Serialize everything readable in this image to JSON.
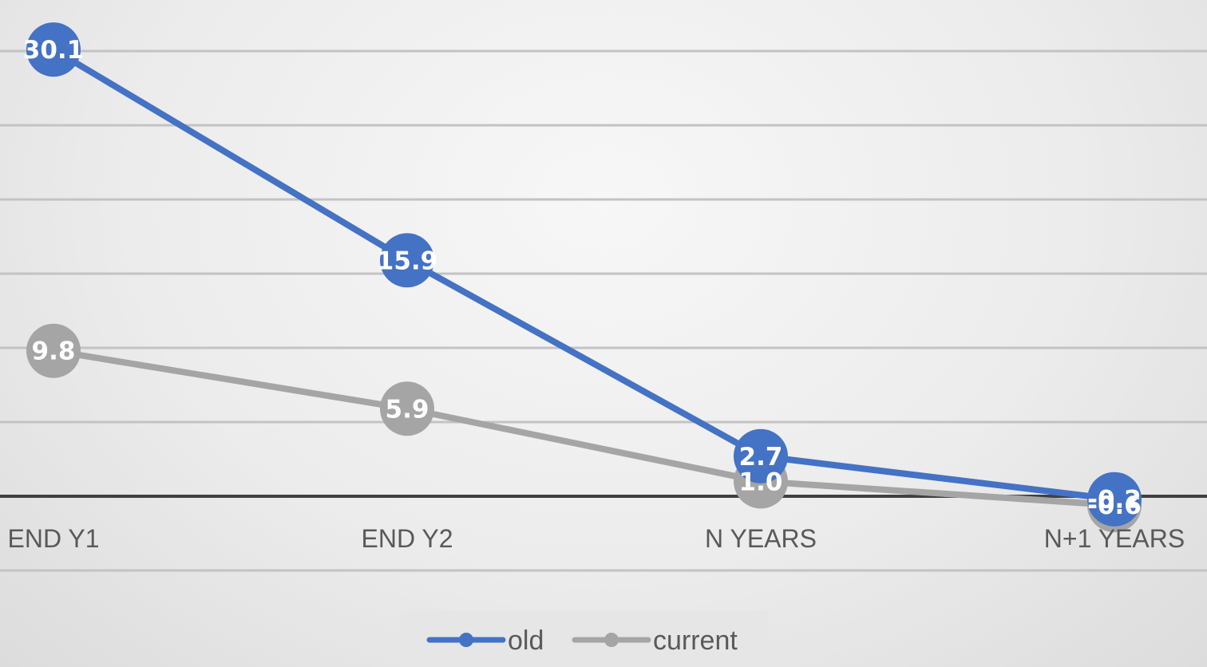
{
  "chart_data": {
    "type": "line",
    "categories": [
      "END Y1",
      "END Y2",
      "N YEARS",
      "N+1 YEARS"
    ],
    "series": [
      {
        "name": "old",
        "color": "#4472C4",
        "values": [
          30.1,
          15.9,
          2.7,
          -0.2
        ],
        "labels": [
          "30.1",
          "15.9",
          "2.7",
          "-0.2"
        ]
      },
      {
        "name": "current",
        "color": "#A5A5A5",
        "values": [
          9.8,
          5.9,
          1.0,
          -0.6
        ],
        "labels": [
          "9.8",
          "5.9",
          "1.0",
          "-0.6"
        ]
      }
    ],
    "ylim": [
      -5,
      30
    ],
    "grid": true,
    "legend": "bottom",
    "title": "",
    "xlabel": "",
    "ylabel": ""
  }
}
